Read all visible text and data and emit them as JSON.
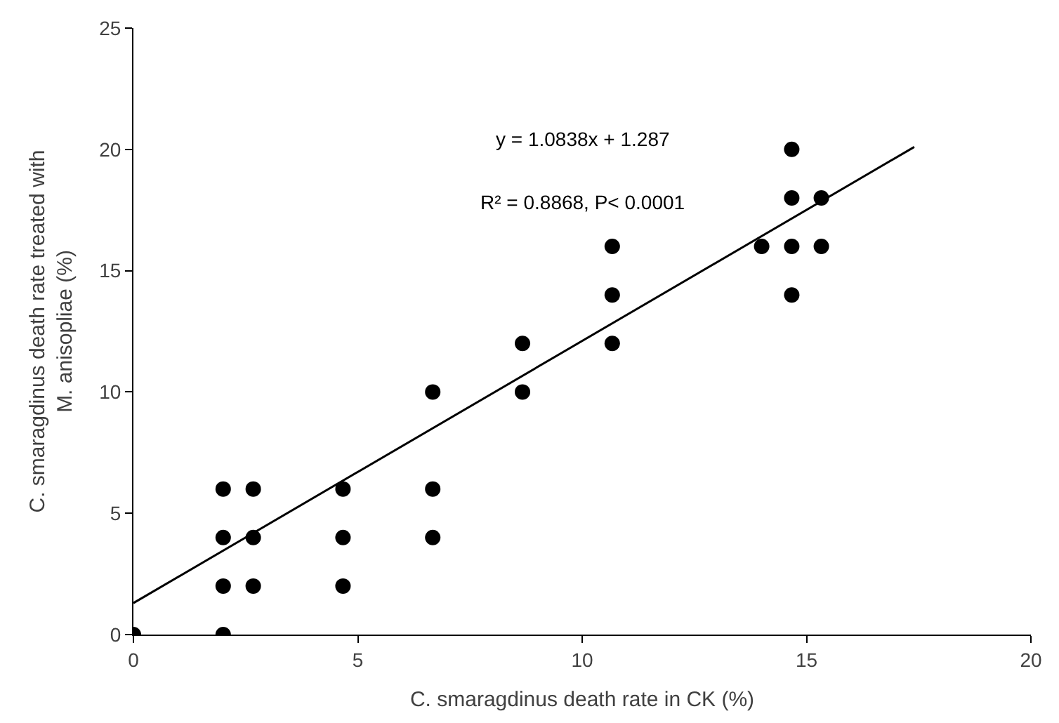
{
  "chart_data": {
    "type": "scatter",
    "xlabel": "C. smaragdinus death rate in CK (%)",
    "ylabel": "C. smaragdinus death rate treated with\nM. anisopliae (%)",
    "xlim": [
      0,
      20
    ],
    "xticks": [
      0,
      5,
      10,
      15,
      20
    ],
    "ylim": [
      0,
      25
    ],
    "yticks": [
      0,
      5,
      10,
      15,
      20,
      25
    ],
    "marker": "circle",
    "annotations": [
      "y = 1.0838x + 1.287",
      "R² = 0.8868, P< 0.0001"
    ],
    "series": [
      {
        "color": "#000000",
        "x": [
          0,
          2,
          2,
          2,
          2,
          2.67,
          2.67,
          2.67,
          4.67,
          4.67,
          4.67,
          6.67,
          6.67,
          6.67,
          8.67,
          8.67,
          10.67,
          10.67,
          10.67,
          14,
          14.67,
          14.67,
          14.67,
          14.67,
          15.33,
          15.33
        ],
        "values": [
          0,
          0,
          2,
          4,
          6,
          2,
          4,
          6,
          2,
          4,
          6,
          4,
          6,
          10,
          10,
          12,
          12,
          14,
          16,
          16,
          14,
          16,
          18,
          20,
          16,
          18
        ]
      },
      {
        "type": "line",
        "color": "#000000",
        "line_style": "solid",
        "marker": "none",
        "x": [
          0,
          17.4
        ],
        "values": [
          1.3,
          20.1
        ]
      }
    ]
  }
}
